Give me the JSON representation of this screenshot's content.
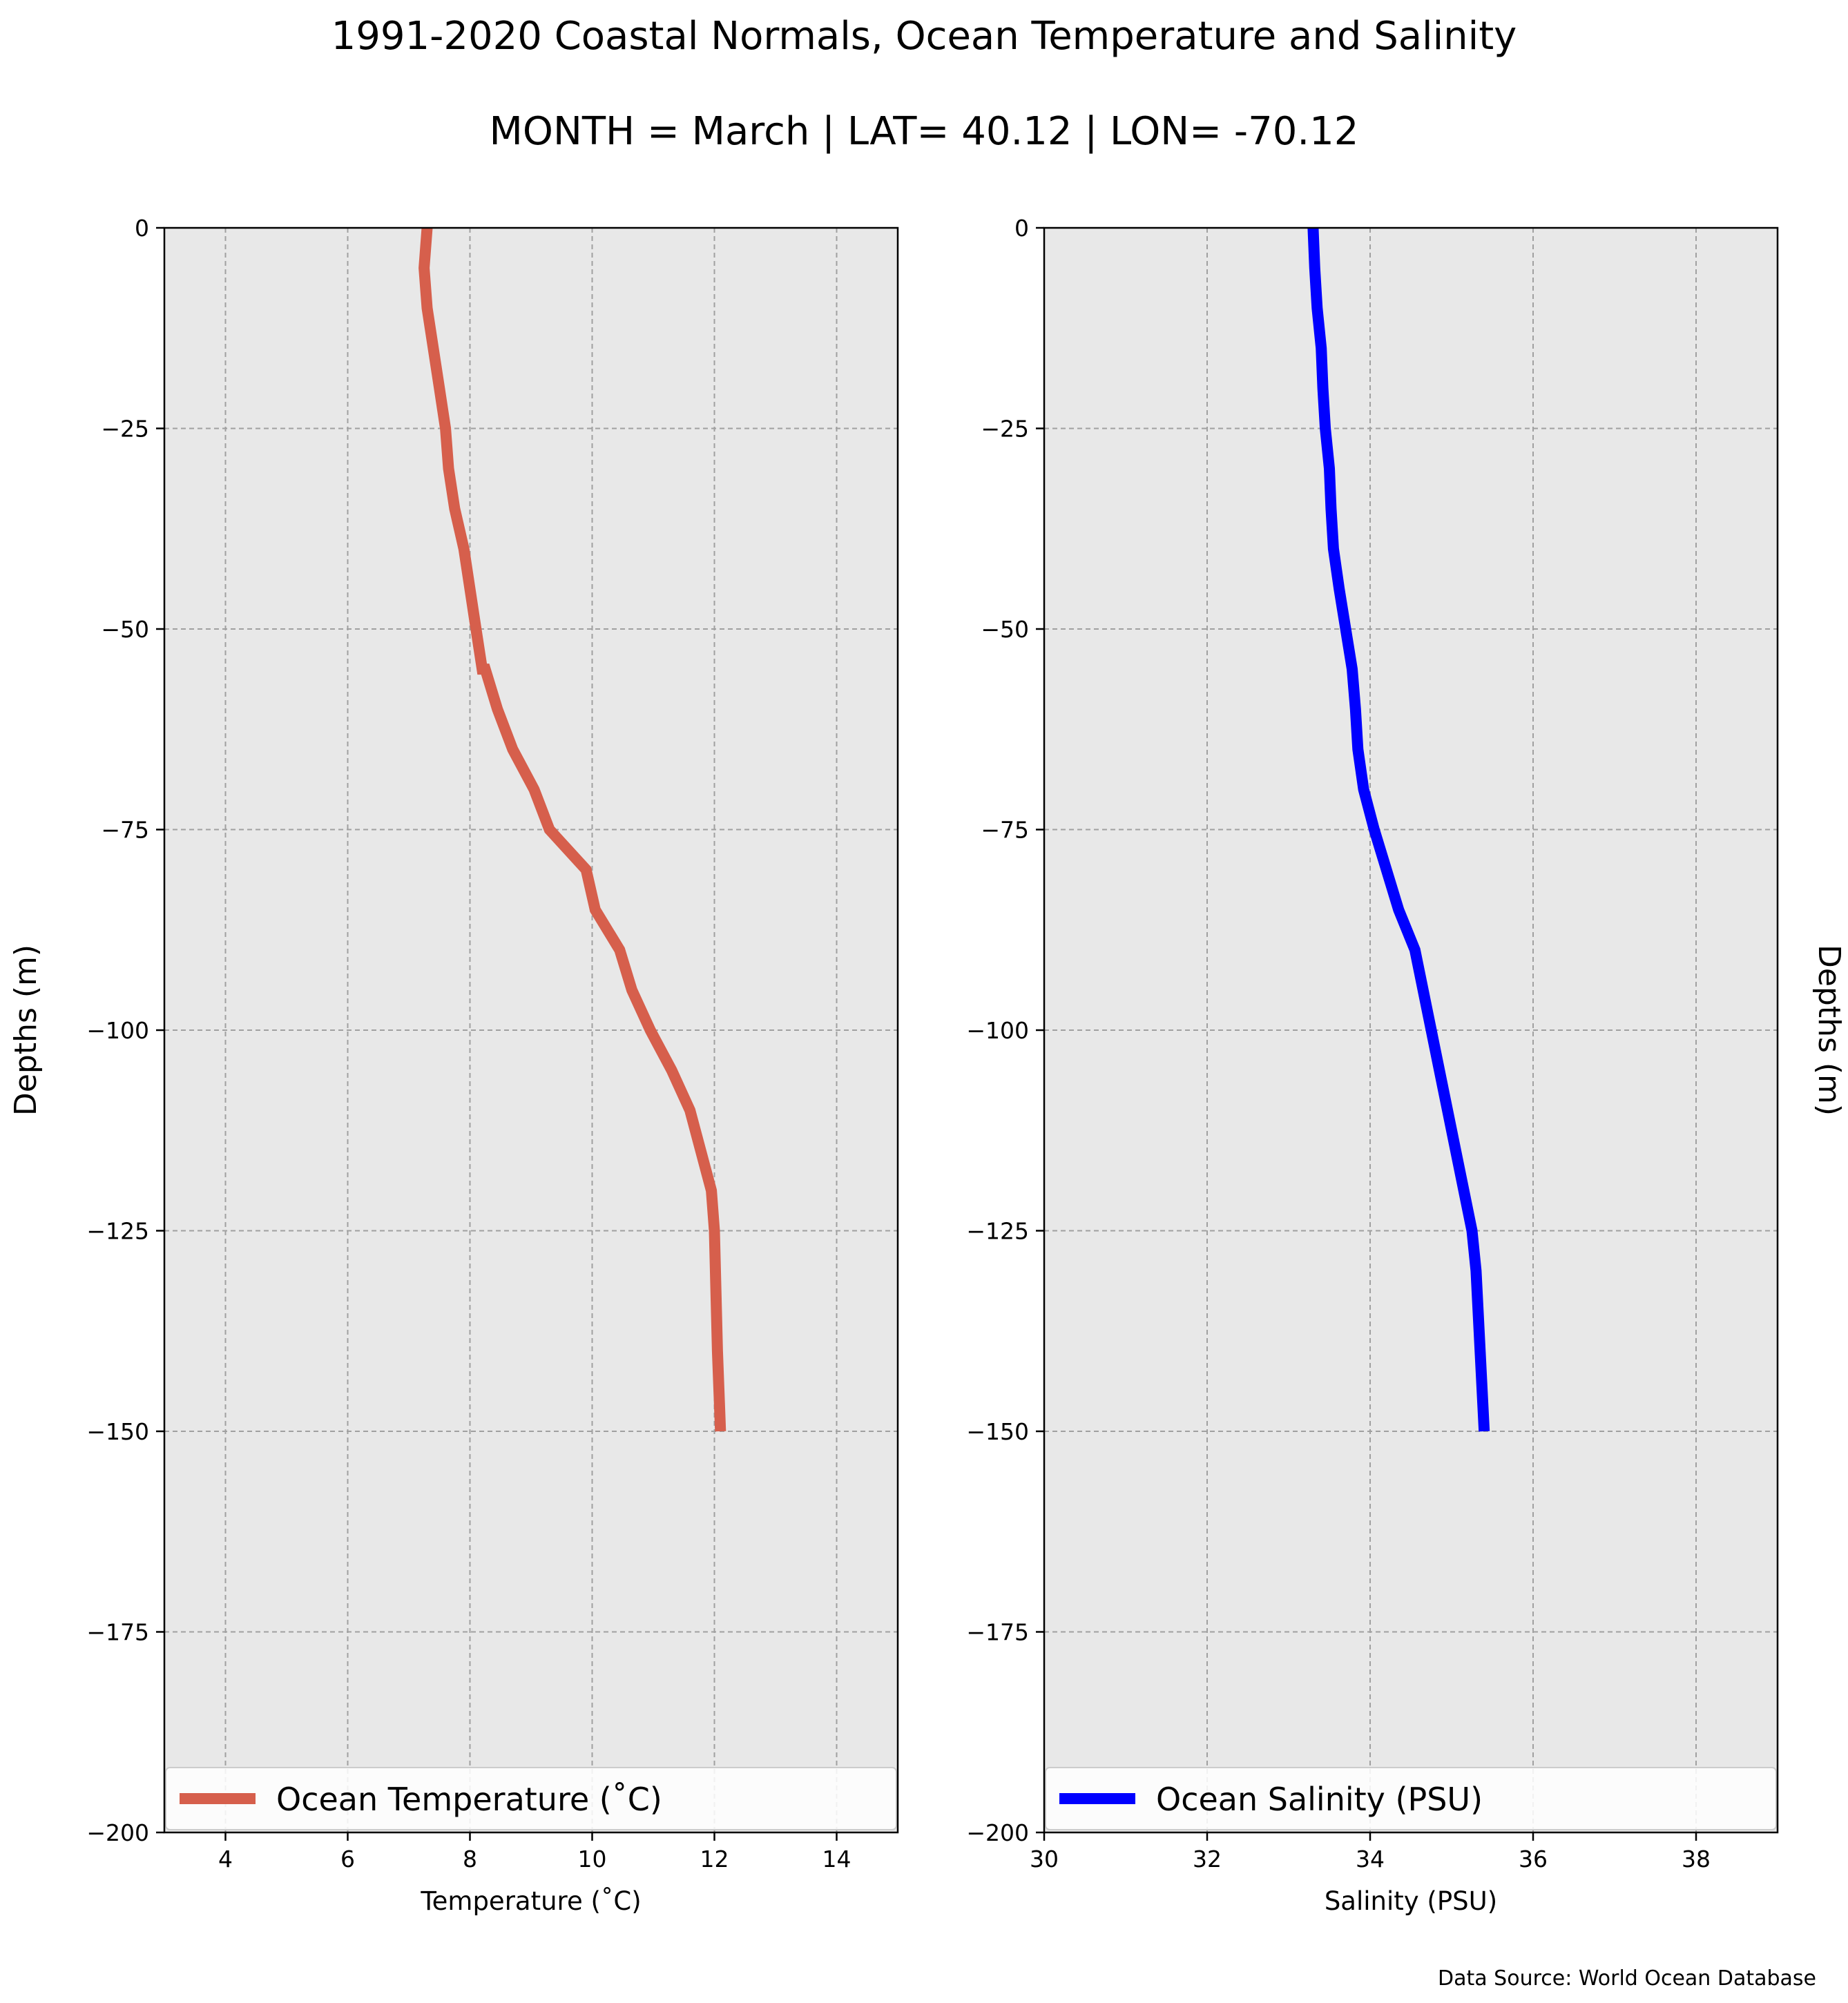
{
  "title": "1991-2020 Coastal Normals, Ocean Temperature and Salinity",
  "subtitle": "MONTH = March | LAT= 40.12 | LON= -70.12",
  "source": "Data Source: World Ocean Database",
  "chart_data": [
    {
      "type": "line",
      "xlabel": "Temperature (˚C)",
      "ylabel": "Depths (m)",
      "xlim": [
        3,
        15
      ],
      "ylim": [
        -200,
        0
      ],
      "xticks": [
        4,
        6,
        8,
        10,
        12,
        14
      ],
      "yticks": [
        0,
        -25,
        -50,
        -75,
        -100,
        -125,
        -150,
        -175,
        -200
      ],
      "grid": true,
      "legend": "bottom",
      "color": "#d65f4c",
      "series": [
        {
          "name": "Ocean Temperature (˚C)",
          "x": [
            7.3,
            7.25,
            7.3,
            7.4,
            7.5,
            7.6,
            7.65,
            7.75,
            7.9,
            8.0,
            8.1,
            8.2,
            8.2,
            8.25,
            8.45,
            8.7,
            9.05,
            9.3,
            9.9,
            10.05,
            10.45,
            10.65,
            10.95,
            11.3,
            11.6,
            11.95,
            12.0,
            12.05,
            12.1
          ],
          "y": [
            0,
            -5,
            -10,
            -15,
            -20,
            -25,
            -30,
            -35,
            -40,
            -45,
            -50,
            -55,
            -55,
            -55,
            -60,
            -65,
            -70,
            -75,
            -80,
            -85,
            -90,
            -95,
            -100,
            -105,
            -110,
            -120,
            -125,
            -140,
            -150
          ]
        }
      ]
    },
    {
      "type": "line",
      "xlabel": "Salinity (PSU)",
      "ylabel": "Depths (m)",
      "xlim": [
        30,
        39
      ],
      "ylim": [
        -200,
        0
      ],
      "xticks": [
        30,
        32,
        34,
        36,
        38
      ],
      "yticks": [
        0,
        -25,
        -50,
        -75,
        -100,
        -125,
        -150,
        -175,
        -200
      ],
      "grid": true,
      "legend": "bottom",
      "color": "#0000ff",
      "series": [
        {
          "name": "Ocean Salinity (PSU)",
          "x": [
            33.3,
            33.32,
            33.35,
            33.4,
            33.42,
            33.45,
            33.5,
            33.52,
            33.55,
            33.62,
            33.7,
            33.78,
            33.82,
            33.85,
            33.92,
            34.05,
            34.2,
            34.35,
            34.55,
            34.65,
            34.75,
            34.85,
            34.95,
            35.05,
            35.15,
            35.25,
            35.3,
            35.35,
            35.4
          ],
          "y": [
            0,
            -5,
            -10,
            -15,
            -20,
            -25,
            -30,
            -35,
            -40,
            -45,
            -50,
            -55,
            -60,
            -65,
            -70,
            -75,
            -80,
            -85,
            -90,
            -95,
            -100,
            -105,
            -110,
            -115,
            -120,
            -125,
            -130,
            -140,
            -150
          ]
        }
      ]
    }
  ]
}
